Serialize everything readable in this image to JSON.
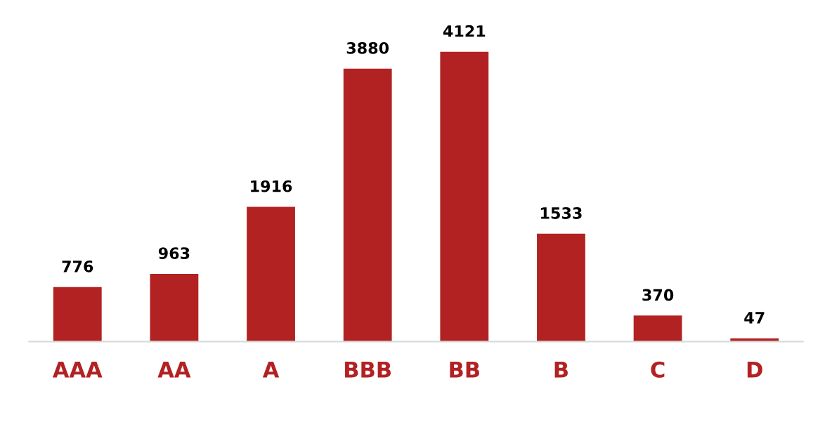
{
  "chart_data": {
    "type": "bar",
    "categories": [
      "AAA",
      "AA",
      "A",
      "BBB",
      "BB",
      "B",
      "C",
      "D"
    ],
    "values": [
      776,
      963,
      1916,
      3880,
      4121,
      1533,
      370,
      47
    ],
    "color": "#b22222",
    "data_labels": true,
    "grid": false,
    "legend": false
  }
}
